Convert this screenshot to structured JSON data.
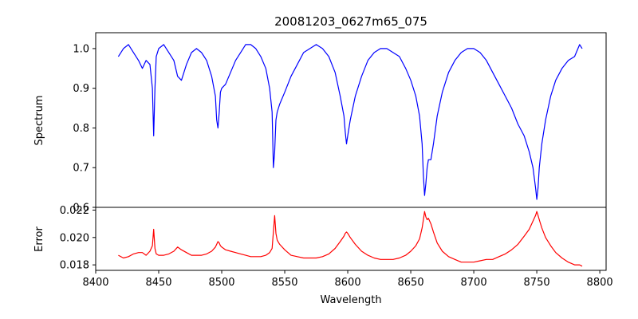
{
  "chart_data": [
    {
      "type": "line",
      "panel": "top",
      "title": "20081203_0627m65_075",
      "xlabel": "",
      "ylabel": "Spectrum",
      "xlim": [
        8400,
        8805
      ],
      "ylim": [
        0.6,
        1.04
      ],
      "xticks": [
        8400,
        8450,
        8500,
        8550,
        8600,
        8650,
        8700,
        8750,
        8800
      ],
      "yticks": [
        0.6,
        0.7,
        0.8,
        0.9,
        1.0
      ],
      "ytick_labels": [
        "0.6",
        "0.7",
        "0.8",
        "0.9",
        "1.0"
      ],
      "series": [
        {
          "name": "spectrum",
          "color": "#0000ff",
          "x": [
            8418,
            8422,
            8426,
            8430,
            8434,
            8437,
            8440,
            8443,
            8445,
            8446,
            8447,
            8448,
            8450,
            8454,
            8458,
            8462,
            8465,
            8468,
            8472,
            8476,
            8480,
            8484,
            8488,
            8492,
            8495,
            8496,
            8497,
            8498,
            8499,
            8500,
            8503,
            8507,
            8511,
            8515,
            8519,
            8523,
            8527,
            8531,
            8535,
            8538,
            8540,
            8541,
            8542,
            8543,
            8544,
            8546,
            8550,
            8555,
            8560,
            8565,
            8570,
            8575,
            8580,
            8585,
            8590,
            8594,
            8597,
            8598,
            8599,
            8600,
            8602,
            8606,
            8611,
            8616,
            8621,
            8626,
            8631,
            8636,
            8641,
            8646,
            8650,
            8654,
            8657,
            8659,
            8660,
            8661,
            8662,
            8663,
            8664,
            8666,
            8668,
            8671,
            8675,
            8680,
            8685,
            8690,
            8695,
            8700,
            8705,
            8710,
            8715,
            8720,
            8725,
            8730,
            8735,
            8740,
            8744,
            8747,
            8749,
            8750,
            8751,
            8752,
            8754,
            8757,
            8761,
            8765,
            8770,
            8775,
            8780,
            8784,
            8786
          ],
          "y": [
            0.98,
            1.0,
            1.01,
            0.99,
            0.97,
            0.95,
            0.97,
            0.96,
            0.9,
            0.78,
            0.9,
            0.98,
            1.0,
            1.01,
            0.99,
            0.97,
            0.93,
            0.92,
            0.96,
            0.99,
            1.0,
            0.99,
            0.97,
            0.93,
            0.88,
            0.82,
            0.8,
            0.84,
            0.89,
            0.9,
            0.91,
            0.94,
            0.97,
            0.99,
            1.01,
            1.01,
            1.0,
            0.98,
            0.95,
            0.9,
            0.84,
            0.7,
            0.74,
            0.82,
            0.84,
            0.86,
            0.89,
            0.93,
            0.96,
            0.99,
            1.0,
            1.01,
            1.0,
            0.98,
            0.94,
            0.88,
            0.83,
            0.79,
            0.76,
            0.78,
            0.82,
            0.88,
            0.93,
            0.97,
            0.99,
            1.0,
            1.0,
            0.99,
            0.98,
            0.95,
            0.92,
            0.88,
            0.83,
            0.76,
            0.68,
            0.63,
            0.66,
            0.7,
            0.72,
            0.72,
            0.76,
            0.83,
            0.89,
            0.94,
            0.97,
            0.99,
            1.0,
            1.0,
            0.99,
            0.97,
            0.94,
            0.91,
            0.88,
            0.85,
            0.81,
            0.78,
            0.74,
            0.7,
            0.65,
            0.62,
            0.65,
            0.7,
            0.76,
            0.82,
            0.88,
            0.92,
            0.95,
            0.97,
            0.98,
            1.01,
            1.0
          ]
        }
      ]
    },
    {
      "type": "line",
      "panel": "bottom",
      "title": "",
      "xlabel": "Wavelength",
      "ylabel": "Error",
      "xlim": [
        8400,
        8805
      ],
      "ylim": [
        0.0176,
        0.0222
      ],
      "xticks": [
        8400,
        8450,
        8500,
        8550,
        8600,
        8650,
        8700,
        8750,
        8800
      ],
      "xtick_labels": [
        "8400",
        "8450",
        "8500",
        "8550",
        "8600",
        "8650",
        "8700",
        "8750",
        "8800"
      ],
      "yticks": [
        0.018,
        0.02,
        0.022
      ],
      "ytick_labels": [
        "0.018",
        "0.020",
        "0.022"
      ],
      "series": [
        {
          "name": "error",
          "color": "#ff0000",
          "x": [
            8418,
            8422,
            8426,
            8430,
            8434,
            8437,
            8440,
            8443,
            8445,
            8446,
            8447,
            8448,
            8450,
            8454,
            8458,
            8462,
            8465,
            8468,
            8472,
            8476,
            8480,
            8484,
            8488,
            8492,
            8495,
            8496,
            8497,
            8498,
            8499,
            8500,
            8503,
            8507,
            8511,
            8515,
            8519,
            8523,
            8527,
            8531,
            8535,
            8538,
            8540,
            8541,
            8542,
            8543,
            8544,
            8546,
            8550,
            8555,
            8560,
            8565,
            8570,
            8575,
            8580,
            8585,
            8590,
            8594,
            8597,
            8598,
            8599,
            8600,
            8602,
            8606,
            8611,
            8616,
            8621,
            8626,
            8631,
            8636,
            8641,
            8646,
            8650,
            8654,
            8657,
            8659,
            8660,
            8661,
            8662,
            8663,
            8664,
            8666,
            8668,
            8671,
            8675,
            8680,
            8685,
            8690,
            8695,
            8700,
            8705,
            8710,
            8715,
            8720,
            8725,
            8730,
            8735,
            8740,
            8744,
            8747,
            8749,
            8750,
            8751,
            8752,
            8754,
            8757,
            8761,
            8765,
            8770,
            8775,
            8780,
            8784,
            8786
          ],
          "y": [
            0.0187,
            0.0185,
            0.0186,
            0.0188,
            0.0189,
            0.0189,
            0.0187,
            0.019,
            0.0194,
            0.0206,
            0.0192,
            0.0188,
            0.0187,
            0.0187,
            0.0188,
            0.019,
            0.0193,
            0.0191,
            0.0189,
            0.0187,
            0.0187,
            0.0187,
            0.0188,
            0.019,
            0.0193,
            0.0195,
            0.0197,
            0.0196,
            0.0194,
            0.0193,
            0.0191,
            0.019,
            0.0189,
            0.0188,
            0.0187,
            0.0186,
            0.0186,
            0.0186,
            0.0187,
            0.0189,
            0.0192,
            0.0204,
            0.0216,
            0.0203,
            0.0198,
            0.0195,
            0.0191,
            0.0187,
            0.0186,
            0.0185,
            0.0185,
            0.0185,
            0.0186,
            0.0188,
            0.0192,
            0.0197,
            0.0201,
            0.0203,
            0.0204,
            0.0203,
            0.02,
            0.0195,
            0.019,
            0.0187,
            0.0185,
            0.0184,
            0.0184,
            0.0184,
            0.0185,
            0.0187,
            0.019,
            0.0194,
            0.0199,
            0.0207,
            0.0213,
            0.0219,
            0.0215,
            0.0213,
            0.0214,
            0.021,
            0.0204,
            0.0196,
            0.019,
            0.0186,
            0.0184,
            0.0182,
            0.0182,
            0.0182,
            0.0183,
            0.0184,
            0.0184,
            0.0186,
            0.0188,
            0.0191,
            0.0195,
            0.0201,
            0.0206,
            0.0212,
            0.0216,
            0.0219,
            0.0216,
            0.0213,
            0.0207,
            0.02,
            0.0194,
            0.0189,
            0.0185,
            0.0182,
            0.018,
            0.018,
            0.0179
          ]
        }
      ]
    }
  ]
}
